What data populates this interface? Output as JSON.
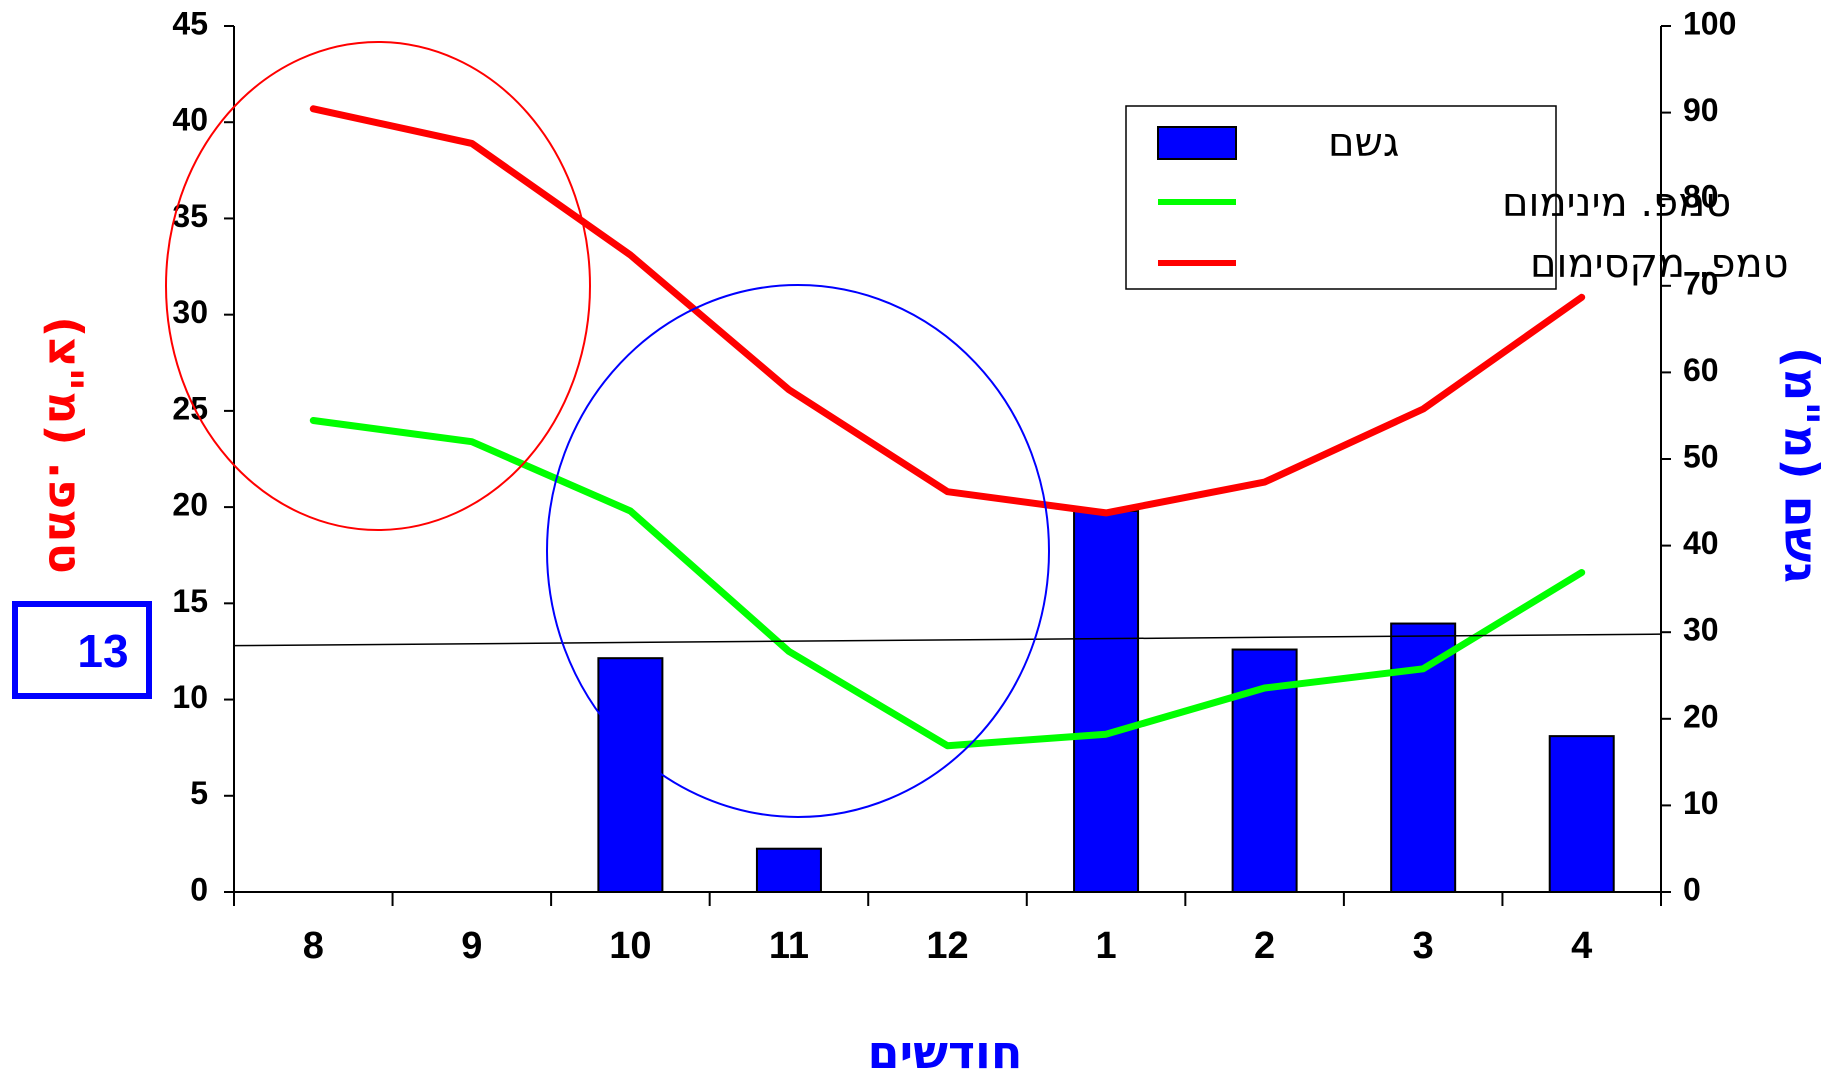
{
  "chart_data": {
    "type": "bar",
    "categories": [
      "8",
      "9",
      "10",
      "11",
      "12",
      "1",
      "2",
      "3",
      "4"
    ],
    "series": [
      {
        "name": "גשם",
        "type": "bar",
        "axis": "right",
        "color": "#0000ff",
        "values": [
          0,
          0,
          27,
          5,
          0,
          44,
          28,
          31,
          18
        ]
      },
      {
        "name": "טמפ. מינימום",
        "type": "line",
        "axis": "left",
        "color": "#00ff00",
        "values": [
          24.5,
          23.4,
          19.8,
          12.5,
          7.6,
          8.2,
          10.6,
          11.6,
          16.6
        ]
      },
      {
        "name": "טמפ. מקסימום",
        "type": "line",
        "axis": "left",
        "color": "#ff0000",
        "values": [
          40.7,
          38.9,
          33.1,
          26.1,
          20.8,
          19.7,
          21.3,
          25.1,
          30.9
        ]
      }
    ],
    "y_left": {
      "label": "טמפ. (מ\"צ)",
      "ticks": [
        "0",
        "5",
        "10",
        "15",
        "20",
        "25",
        "30",
        "35",
        "40",
        "45"
      ],
      "ylim": [
        0,
        45
      ],
      "color": "#ff0000"
    },
    "y_right": {
      "label": "גשם (מ\"מ)",
      "ticks": [
        "0",
        "10",
        "20",
        "30",
        "40",
        "50",
        "60",
        "70",
        "80",
        "90",
        "100"
      ],
      "ylim": [
        0,
        100
      ],
      "color": "#0000ff"
    },
    "xlabel": "חודשים",
    "xlabel_color": "#0000ff",
    "legend": {
      "placement": "top-right"
    },
    "annotations": {
      "threshold_box": {
        "text": "13",
        "color": "#0000ff"
      },
      "reference_line": {
        "from": 12.8,
        "to": 13.4
      },
      "circles": [
        {
          "color": "#ff0000",
          "around": [
            "8",
            "9"
          ]
        },
        {
          "color": "#0000ff",
          "around": [
            "10",
            "11",
            "12"
          ]
        }
      ]
    },
    "grid": false
  }
}
